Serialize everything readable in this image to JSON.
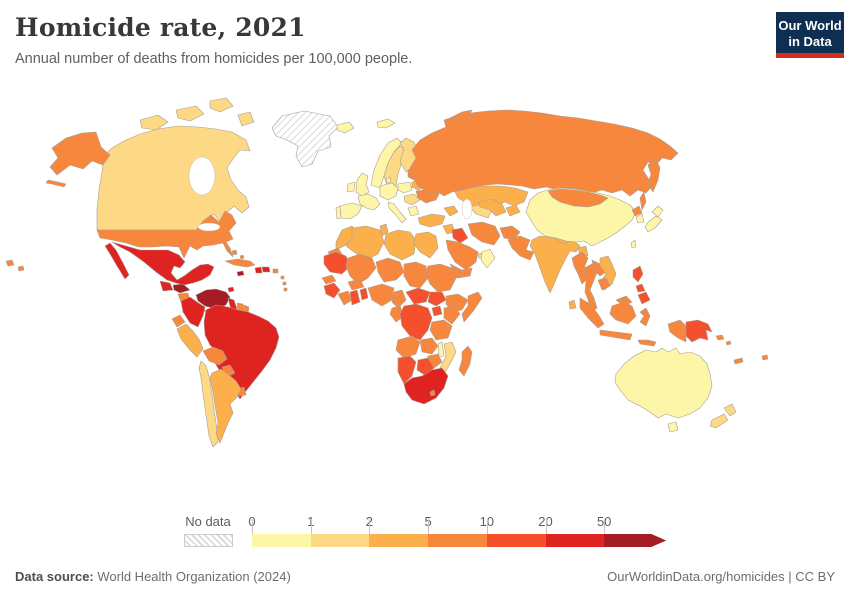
{
  "header": {
    "title": "Homicide rate, 2021",
    "subtitle": "Annual number of deaths from homicides per 100,000 people."
  },
  "logo": {
    "line1": "Our World",
    "line2": "in Data",
    "bg_color": "#0f2f52",
    "accent_color": "#d52b1e"
  },
  "legend": {
    "no_data_label": "No data",
    "tick_labels": [
      "0",
      "1",
      "2",
      "5",
      "10",
      "20",
      "50"
    ],
    "bin_ranges": [
      "0-1",
      "1-2",
      "2-5",
      "5-10",
      "10-20",
      "20-50",
      "50+"
    ],
    "bin_colors": [
      "#fdf6a8",
      "#fed985",
      "#fcb04b",
      "#f8873e",
      "#f4502d",
      "#de2321",
      "#a61c25"
    ]
  },
  "footer": {
    "source_label": "Data source:",
    "source_value": " World Health Organization (2024)",
    "attribution": "OurWorldinData.org/homicides | CC BY"
  },
  "chart_data": {
    "type": "choropleth",
    "title": "Homicide rate, 2021",
    "subtitle": "Annual number of deaths from homicides per 100,000 people.",
    "unit": "deaths from homicides per 100,000 people",
    "legend_bins": [
      {
        "range": "0-1",
        "color": "#fdf6a8"
      },
      {
        "range": "1-2",
        "color": "#fed985"
      },
      {
        "range": "2-5",
        "color": "#fcb04b"
      },
      {
        "range": "5-10",
        "color": "#f8873e"
      },
      {
        "range": "10-20",
        "color": "#f4502d"
      },
      {
        "range": "20-50",
        "color": "#de2321"
      },
      {
        "range": "50+",
        "color": "#a61c25"
      },
      {
        "range": "No data",
        "color": "hatched"
      }
    ],
    "regions": {
      "greenland": "No data",
      "iceland": "0-1",
      "svalbard": "0-1",
      "norway": "0-1",
      "united-kingdom": "0-1",
      "ireland": "0-1",
      "france": "0-1",
      "portugal": "0-1",
      "spain": "0-1",
      "germany": "0-1",
      "denmark": "0-1",
      "poland": "0-1",
      "italy": "0-1",
      "greece": "0-1",
      "china": "0-1",
      "japan": "0-1",
      "south-korea": "0-1",
      "taiwan": "0-1",
      "oman": "0-1",
      "australia": "0-1",
      "malawi": "0-1",
      "canada": "1-2",
      "sweden": "1-2",
      "finland": "1-2",
      "romania-balkans": "1-2",
      "chile": "1-2",
      "new-zealand": "1-2",
      "mozambique": "1-2",
      "turkmenistan": "1-2",
      "united-arab-emirates": "1-2",
      "peru": "2-5",
      "argentina": "2-5",
      "kazakhstan": "2-5",
      "uzbekistan": "2-5",
      "kyrgyzstan": "2-5",
      "india": "2-5",
      "nepal": "2-5",
      "bangladesh": "2-5",
      "sri-lanka": "2-5",
      "vietnam": "2-5",
      "morocco": "2-5",
      "algeria": "2-5",
      "tunisia": "2-5",
      "libya": "2-5",
      "egypt": "2-5",
      "turkey": "2-5",
      "syria": "2-5",
      "caucasus": "2-5",
      "belarus": "2-5",
      "united-states": "5-10",
      "russia": "5-10",
      "ukraine": "5-10",
      "baltic-states": "5-10",
      "mongolia": "5-10",
      "north-korea": "5-10",
      "myanmar": "5-10",
      "thailand": "5-10",
      "laos": "5-10",
      "cambodia": "5-10",
      "malaysia": "5-10",
      "indonesia": "5-10",
      "iran": "5-10",
      "saudi-arabia": "5-10",
      "yemen": "5-10",
      "afghanistan": "5-10",
      "pakistan": "5-10",
      "western-sahara": "5-10",
      "mali": "5-10",
      "niger": "5-10",
      "chad": "5-10",
      "sudan": "5-10",
      "eritrea": "5-10",
      "senegal": "5-10",
      "ivory-coast": "5-10",
      "burkina-faso": "5-10",
      "nigeria": "5-10",
      "cameroon": "5-10",
      "ethiopia": "5-10",
      "somalia": "5-10",
      "kenya": "5-10",
      "congo": "5-10",
      "tanzania": "5-10",
      "angola": "5-10",
      "zambia": "5-10",
      "zimbabwe": "5-10",
      "madagascar": "5-10",
      "lesotho": "5-10",
      "cuba": "5-10",
      "puerto-rico": "5-10",
      "bahamas": "5-10",
      "nicaragua": "5-10",
      "costa-rica": "5-10",
      "suriname": "5-10",
      "french-guiana": "5-10",
      "ecuador": "5-10",
      "bolivia": "5-10",
      "paraguay": "5-10",
      "uruguay": "5-10",
      "lesser-antilles": "5-10",
      "solomon-islands": "5-10",
      "new-caledonia": "5-10",
      "fiji": "5-10",
      "iraq": "10-20",
      "mauritania": "10-20",
      "guinea": "10-20",
      "ghana": "10-20",
      "togo-benin": "10-20",
      "central-african-republic": "10-20",
      "south-sudan": "10-20",
      "uganda": "10-20",
      "democratic-republic-of-congo": "10-20",
      "botswana": "10-20",
      "namibia": "10-20",
      "philippines": "10-20",
      "papua-new-guinea": "10-20",
      "panama": "10-20",
      "mexico": "20-50",
      "guatemala": "20-50",
      "haiti": "20-50",
      "dominican-republic": "20-50",
      "trinidad-and-tobago": "20-50",
      "colombia": "20-50",
      "guyana": "20-50",
      "brazil": "20-50",
      "south-africa": "20-50",
      "venezuela": "50+",
      "honduras": "50+",
      "jamaica": "50+"
    }
  }
}
